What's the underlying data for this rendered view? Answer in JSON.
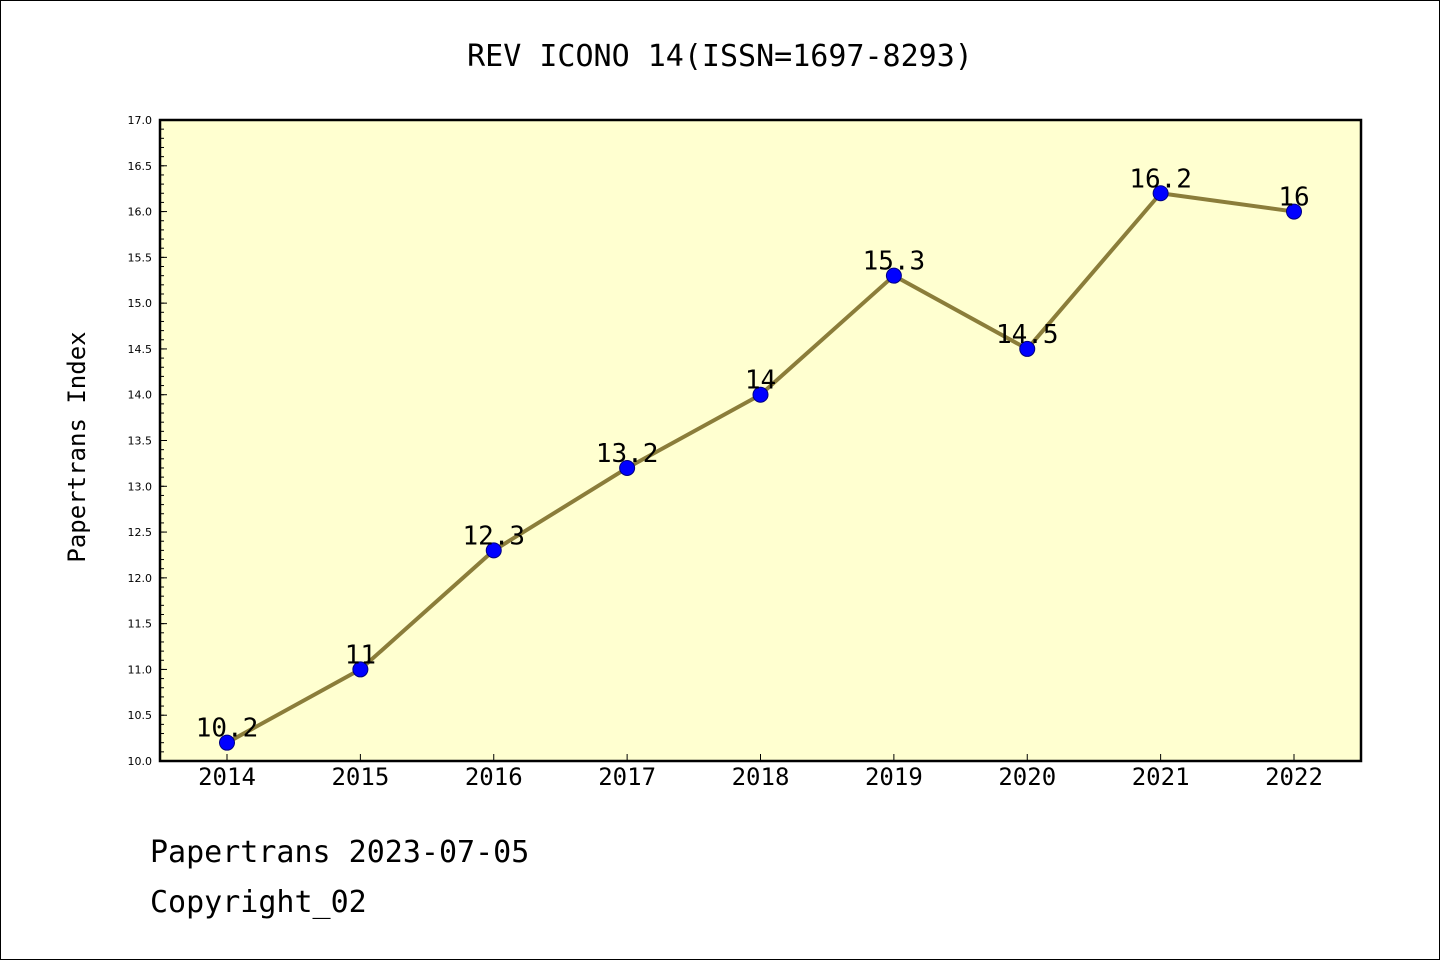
{
  "chart_data": {
    "type": "line",
    "title": "REV ICONO 14(ISSN=1697-8293)",
    "xlabel": "",
    "ylabel": "Papertrans Index",
    "categories": [
      "2014",
      "2015",
      "2016",
      "2017",
      "2018",
      "2019",
      "2020",
      "2021",
      "2022"
    ],
    "series": [
      {
        "values": [
          10.2,
          11,
          12.3,
          13.2,
          14,
          15.3,
          14.5,
          16.2,
          16
        ],
        "labels": [
          "10.2",
          "11",
          "12.3",
          "13.2",
          "14",
          "15.3",
          "14.5",
          "16.2",
          "16"
        ]
      }
    ],
    "ylim": [
      10.0,
      17.0
    ],
    "yticks": [
      "10.0",
      "10.5",
      "11.0",
      "11.5",
      "12.0",
      "12.5",
      "13.0",
      "13.5",
      "14.0",
      "14.5",
      "15.0",
      "15.5",
      "16.0",
      "16.5",
      "17.0"
    ],
    "grid": false,
    "colors": {
      "plot_background": "#ffffd0",
      "line": "#8b7d3a",
      "marker_fill": "#0000ff",
      "marker_edge": "#000080"
    }
  },
  "footer": {
    "line1": "Papertrans 2023-07-05",
    "line2": "Copyright_02"
  }
}
